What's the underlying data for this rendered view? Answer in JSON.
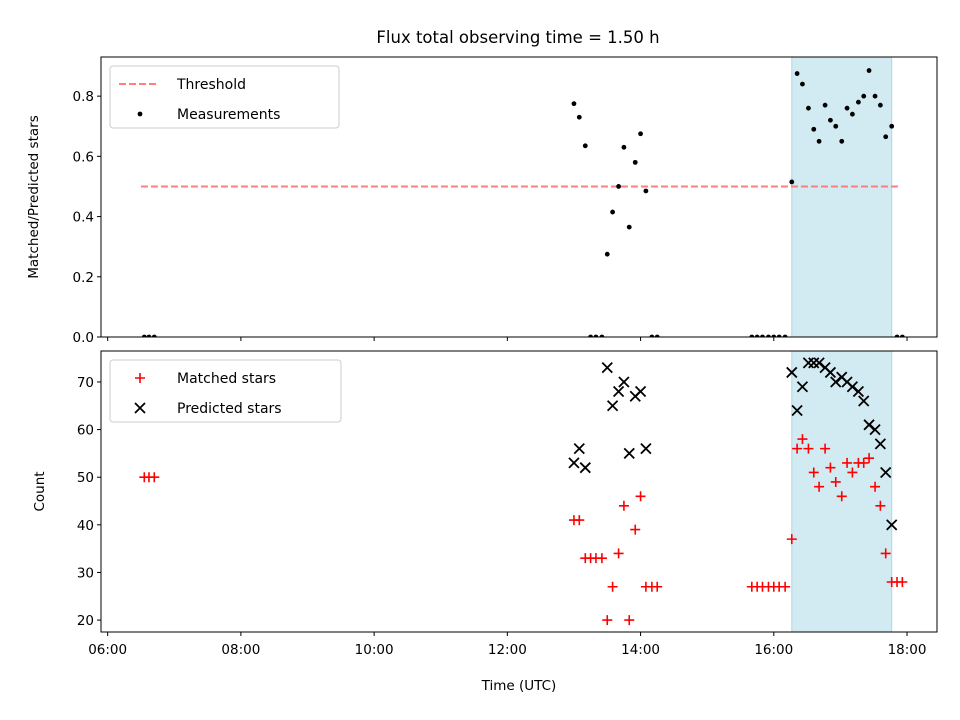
{
  "title": "Flux total observing time = 1.50 h",
  "colors": {
    "threshold": "#ff7f7f",
    "measurement": "#000000",
    "matched": "#ff0000",
    "predicted": "#000000",
    "highlight": "#add8e6"
  },
  "chart_data": [
    {
      "type": "scatter",
      "ylabel": "Matched/Predicted stars",
      "xlim_hours": [
        5.9,
        18.45
      ],
      "ylim": [
        0,
        0.93
      ],
      "yticks": [
        0.0,
        0.2,
        0.4,
        0.6,
        0.8
      ],
      "ytick_labels": [
        "0.0",
        "0.2",
        "0.4",
        "0.6",
        "0.8"
      ],
      "highlight_span_hours": [
        16.27,
        17.77
      ],
      "legend": {
        "position": "upper-left",
        "entries": [
          "Threshold",
          "Measurements"
        ]
      },
      "threshold": {
        "name": "Threshold",
        "x_hours": [
          6.5,
          17.9
        ],
        "y": 0.5,
        "style": "dashed"
      },
      "series": [
        {
          "name": "Measurements",
          "marker": "dot",
          "points": [
            [
              6.55,
              0
            ],
            [
              6.62,
              0
            ],
            [
              6.7,
              0
            ],
            [
              13.0,
              0.775
            ],
            [
              13.08,
              0.73
            ],
            [
              13.17,
              0.635
            ],
            [
              13.25,
              0
            ],
            [
              13.33,
              0
            ],
            [
              13.42,
              0
            ],
            [
              13.5,
              0.275
            ],
            [
              13.58,
              0.415
            ],
            [
              13.67,
              0.5
            ],
            [
              13.75,
              0.63
            ],
            [
              13.83,
              0.365
            ],
            [
              13.92,
              0.58
            ],
            [
              14.0,
              0.675
            ],
            [
              14.08,
              0.485
            ],
            [
              14.17,
              0
            ],
            [
              14.25,
              0
            ],
            [
              15.67,
              0
            ],
            [
              15.75,
              0
            ],
            [
              15.83,
              0
            ],
            [
              15.92,
              0
            ],
            [
              16.0,
              0
            ],
            [
              16.08,
              0
            ],
            [
              16.17,
              0
            ],
            [
              16.27,
              0.515
            ],
            [
              16.35,
              0.875
            ],
            [
              16.43,
              0.84
            ],
            [
              16.52,
              0.76
            ],
            [
              16.6,
              0.69
            ],
            [
              16.68,
              0.65
            ],
            [
              16.77,
              0.77
            ],
            [
              16.85,
              0.72
            ],
            [
              16.93,
              0.7
            ],
            [
              17.02,
              0.65
            ],
            [
              17.1,
              0.76
            ],
            [
              17.18,
              0.74
            ],
            [
              17.27,
              0.78
            ],
            [
              17.35,
              0.8
            ],
            [
              17.43,
              0.885
            ],
            [
              17.52,
              0.8
            ],
            [
              17.6,
              0.77
            ],
            [
              17.68,
              0.665
            ],
            [
              17.77,
              0.7
            ],
            [
              17.85,
              0
            ],
            [
              17.93,
              0
            ]
          ]
        }
      ]
    },
    {
      "type": "scatter",
      "ylabel": "Count",
      "xlabel": "Time (UTC)",
      "xlim_hours": [
        5.9,
        18.45
      ],
      "ylim": [
        17.5,
        76.5
      ],
      "xticks_hours": [
        6,
        8,
        10,
        12,
        14,
        16,
        18
      ],
      "xtick_labels": [
        "06:00",
        "08:00",
        "10:00",
        "12:00",
        "14:00",
        "16:00",
        "18:00"
      ],
      "yticks": [
        20,
        30,
        40,
        50,
        60,
        70
      ],
      "ytick_labels": [
        "20",
        "30",
        "40",
        "50",
        "60",
        "70"
      ],
      "highlight_span_hours": [
        16.27,
        17.77
      ],
      "legend": {
        "position": "upper-left",
        "entries": [
          "Matched stars",
          "Predicted stars"
        ]
      },
      "series": [
        {
          "name": "Matched stars",
          "marker": "plus",
          "points": [
            [
              6.55,
              50
            ],
            [
              6.62,
              50
            ],
            [
              6.7,
              50
            ],
            [
              13.0,
              41
            ],
            [
              13.08,
              41
            ],
            [
              13.17,
              33
            ],
            [
              13.25,
              33
            ],
            [
              13.33,
              33
            ],
            [
              13.42,
              33
            ],
            [
              13.5,
              20
            ],
            [
              13.58,
              27
            ],
            [
              13.67,
              34
            ],
            [
              13.75,
              44
            ],
            [
              13.83,
              20
            ],
            [
              13.92,
              39
            ],
            [
              14.0,
              46
            ],
            [
              14.08,
              27
            ],
            [
              14.17,
              27
            ],
            [
              14.25,
              27
            ],
            [
              15.67,
              27
            ],
            [
              15.75,
              27
            ],
            [
              15.83,
              27
            ],
            [
              15.92,
              27
            ],
            [
              16.0,
              27
            ],
            [
              16.08,
              27
            ],
            [
              16.17,
              27
            ],
            [
              16.27,
              37
            ],
            [
              16.35,
              56
            ],
            [
              16.43,
              58
            ],
            [
              16.52,
              56
            ],
            [
              16.6,
              51
            ],
            [
              16.68,
              48
            ],
            [
              16.77,
              56
            ],
            [
              16.85,
              52
            ],
            [
              16.93,
              49
            ],
            [
              17.02,
              46
            ],
            [
              17.1,
              53
            ],
            [
              17.18,
              51
            ],
            [
              17.27,
              53
            ],
            [
              17.35,
              53
            ],
            [
              17.43,
              54
            ],
            [
              17.52,
              48
            ],
            [
              17.6,
              44
            ],
            [
              17.68,
              34
            ],
            [
              17.77,
              28
            ],
            [
              17.85,
              28
            ],
            [
              17.93,
              28
            ]
          ]
        },
        {
          "name": "Predicted stars",
          "marker": "x",
          "points": [
            [
              13.0,
              53
            ],
            [
              13.08,
              56
            ],
            [
              13.17,
              52
            ],
            [
              13.5,
              73
            ],
            [
              13.58,
              65
            ],
            [
              13.67,
              68
            ],
            [
              13.75,
              70
            ],
            [
              13.83,
              55
            ],
            [
              13.92,
              67
            ],
            [
              14.0,
              68
            ],
            [
              14.08,
              56
            ],
            [
              16.27,
              72
            ],
            [
              16.35,
              64
            ],
            [
              16.43,
              69
            ],
            [
              16.52,
              74
            ],
            [
              16.6,
              74
            ],
            [
              16.68,
              74
            ],
            [
              16.77,
              73
            ],
            [
              16.85,
              72
            ],
            [
              16.93,
              70
            ],
            [
              17.02,
              71
            ],
            [
              17.1,
              70
            ],
            [
              17.18,
              69
            ],
            [
              17.27,
              68
            ],
            [
              17.35,
              66
            ],
            [
              17.43,
              61
            ],
            [
              17.52,
              60
            ],
            [
              17.6,
              57
            ],
            [
              17.68,
              51
            ],
            [
              17.77,
              40
            ]
          ]
        }
      ]
    }
  ]
}
